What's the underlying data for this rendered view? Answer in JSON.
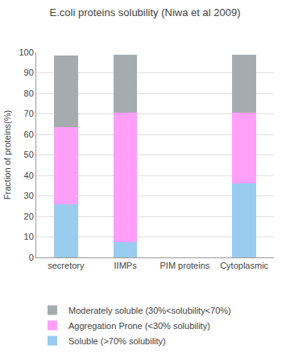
{
  "chart_data": {
    "type": "bar",
    "title": "E.coli proteins solubility (Niwa et al 2009)",
    "y_label": "Fraction of proteins(%)",
    "categories": [
      "secretory",
      "IIMPs",
      "PIM proteins",
      "Cytoplasmic"
    ],
    "series": [
      {
        "name": "Soluble (>70% solubility)",
        "color": "#99ccee",
        "values": [
          26,
          7.5,
          null,
          36
        ]
      },
      {
        "name": "Aggregation Prone (<30% solubility)",
        "color": "#ff9ff8",
        "values": [
          37.5,
          63,
          null,
          34.5
        ]
      },
      {
        "name": "Moderately soluble (30%<solubility<70%)",
        "color": "#a5acb0",
        "values": [
          35,
          28.5,
          null,
          28.5
        ]
      }
    ],
    "ylim": [
      0,
      100
    ],
    "yticks": [
      0,
      10,
      20,
      30,
      40,
      50,
      60,
      70,
      80,
      90,
      100
    ],
    "grid": true,
    "stacked": true,
    "legend": "bottom"
  }
}
